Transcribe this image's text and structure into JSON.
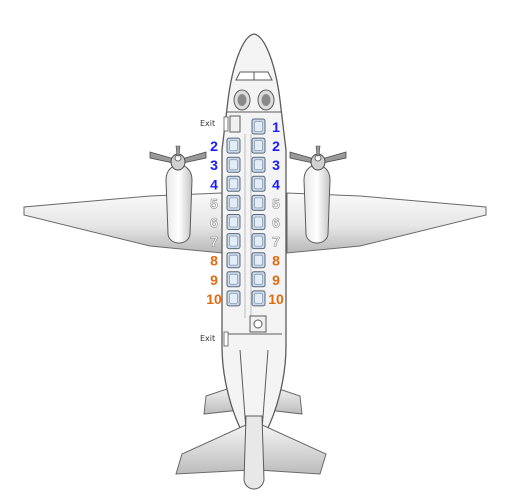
{
  "diagram": {
    "exit_labels": [
      "Exit",
      "Exit"
    ],
    "colors": {
      "row_blue": "#1a1aff",
      "row_orange": "#e06b10",
      "row_white": "#ffffff",
      "seat_fill": "#c9d9ea",
      "seat_stroke": "#5a6a7a",
      "fuselage_fill": "#f4f4f4",
      "outline": "#5c5c5c"
    },
    "rows": [
      {
        "row": "1",
        "left": false,
        "right": true,
        "color_key": "row_blue"
      },
      {
        "row": "2",
        "left": true,
        "right": true,
        "color_key": "row_blue"
      },
      {
        "row": "3",
        "left": true,
        "right": true,
        "color_key": "row_blue"
      },
      {
        "row": "4",
        "left": true,
        "right": true,
        "color_key": "row_blue"
      },
      {
        "row": "5",
        "left": true,
        "right": true,
        "color_key": "row_white"
      },
      {
        "row": "6",
        "left": true,
        "right": true,
        "color_key": "row_white"
      },
      {
        "row": "7",
        "left": true,
        "right": true,
        "color_key": "row_white"
      },
      {
        "row": "8",
        "left": true,
        "right": true,
        "color_key": "row_orange"
      },
      {
        "row": "9",
        "left": true,
        "right": true,
        "color_key": "row_orange"
      },
      {
        "row": "10",
        "left": true,
        "right": true,
        "color_key": "row_orange"
      }
    ]
  }
}
